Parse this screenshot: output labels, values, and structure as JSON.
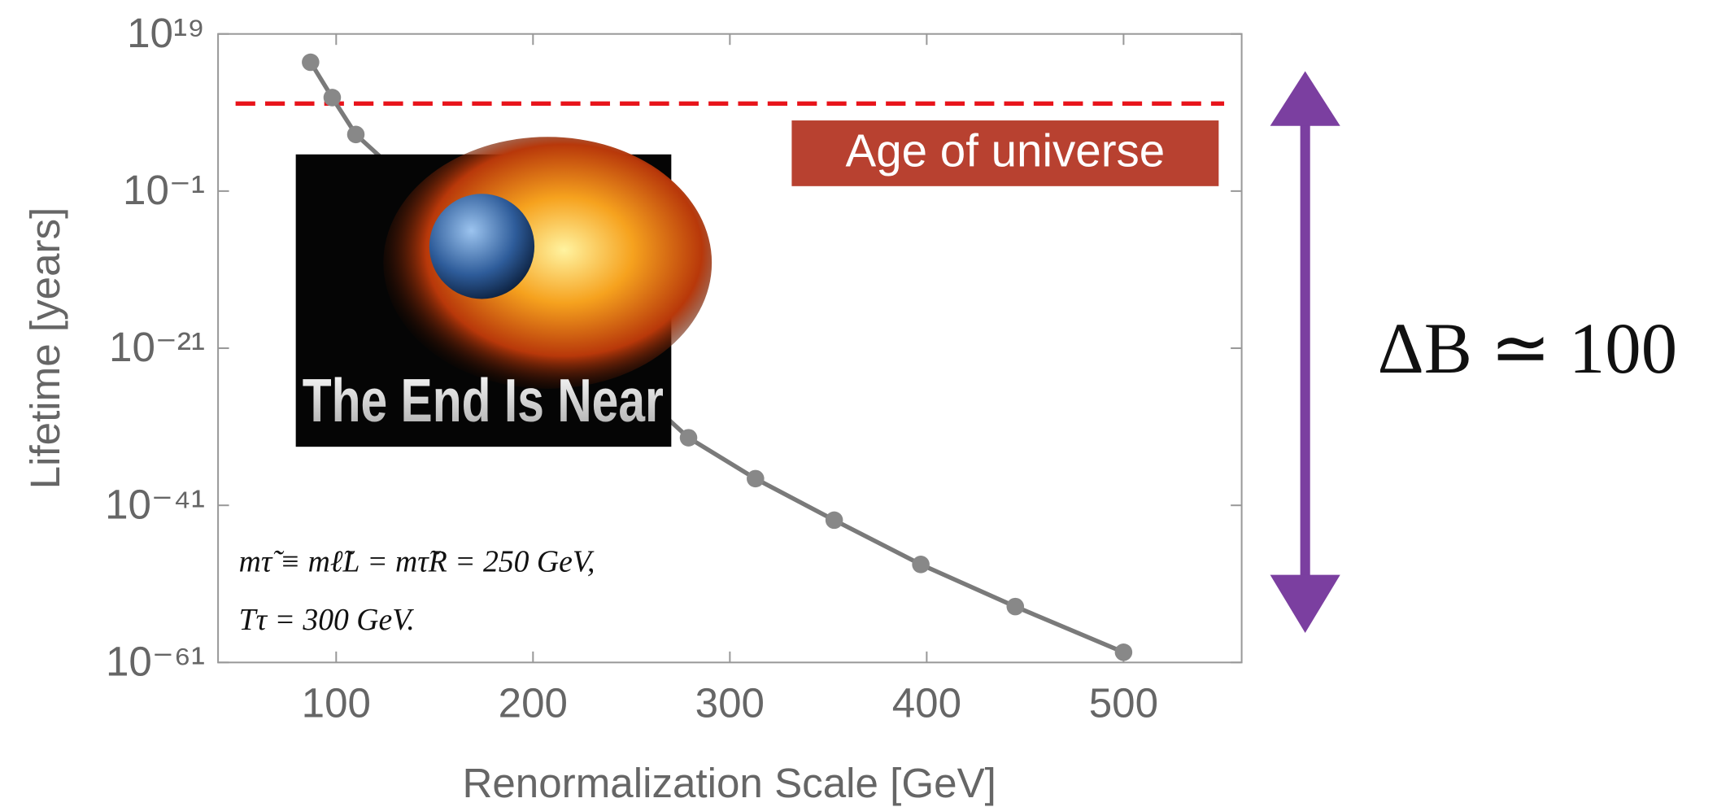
{
  "chart_data": {
    "type": "line",
    "xlabel": "Renormalization Scale [GeV]",
    "ylabel": "Lifetime [years]",
    "log_y": true,
    "xlim": [
      40,
      560
    ],
    "xticks": [
      100,
      200,
      300,
      400,
      500
    ],
    "ylim": [
      1e-61,
      1e+19
    ],
    "yticks": [
      {
        "value": 1e+19,
        "label": "10¹⁹"
      },
      {
        "value": 0.1,
        "label": "10⁻¹"
      },
      {
        "value": 1e-21,
        "label": "10⁻²¹"
      },
      {
        "value": 1e-41,
        "label": "10⁻⁴¹"
      },
      {
        "value": 1e-61,
        "label": "10⁻⁶¹"
      }
    ],
    "series": [
      {
        "color": "#7a7a7a",
        "x": [
          87,
          98,
          110,
          279,
          313,
          353,
          397,
          445,
          500
        ],
        "values": [
          2500000000000000.0,
          80000000000.0,
          1600000.0,
          4e-33,
          2.5e-38,
          1.3e-43,
          3e-49,
          1.3e-54,
          2e-60
        ]
      }
    ],
    "reference_line": {
      "value": 13800000000.0,
      "label": "Age of universe",
      "color": "#e8141b"
    },
    "inset_image_text": "The End Is Near",
    "annotations": [
      "mτ̃ ≡ mℓ̃L = mτ̃R = 250 GeV,",
      "Tτ = 300 GeV."
    ],
    "side_annotation": "ΔB ≃ 100"
  }
}
